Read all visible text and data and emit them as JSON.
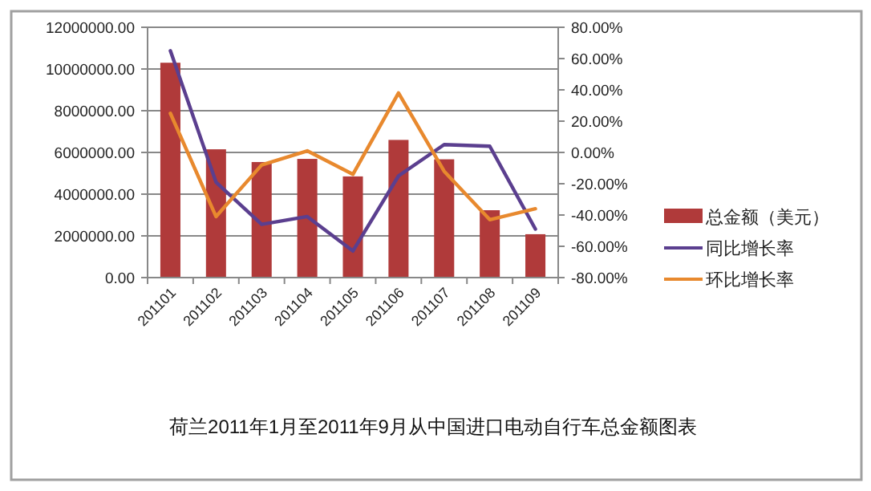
{
  "chart_data": {
    "type": "bar",
    "title": "荷兰2011年1月至2011年9月从中国进口电动自行车总金额图表",
    "categories": [
      "201101",
      "201102",
      "201103",
      "201104",
      "201105",
      "201106",
      "201107",
      "201108",
      "201109"
    ],
    "series": [
      {
        "name": "总金额（美元）",
        "color": "#b03a3a",
        "values": [
          10300000,
          6150000,
          5540000,
          5690000,
          4850000,
          6600000,
          5670000,
          3230000,
          2080000
        ]
      },
      {
        "name": "同比增长率",
        "type": "line",
        "axis": "y2",
        "color": "#5b3f8f",
        "values": [
          65,
          -19,
          -46,
          -41,
          -63,
          -15,
          5,
          4,
          -49
        ]
      },
      {
        "name": "环比增长率",
        "type": "line",
        "axis": "y2",
        "color": "#e8892e",
        "values": [
          25,
          -41,
          -8,
          1,
          -14,
          38,
          -12,
          -43,
          -36
        ]
      }
    ],
    "ylim": [
      0,
      12000000
    ],
    "yticks": [
      {
        "value": 0,
        "label": "0.00"
      },
      {
        "value": 2000000,
        "label": "2000000.00"
      },
      {
        "value": 4000000,
        "label": "4000000.00"
      },
      {
        "value": 6000000,
        "label": "6000000.00"
      },
      {
        "value": 8000000,
        "label": "8000000.00"
      },
      {
        "value": 10000000,
        "label": "10000000.00"
      },
      {
        "value": 12000000,
        "label": "12000000.00"
      }
    ],
    "y2lim": [
      -80,
      80
    ],
    "y2ticks": [
      {
        "value": -80,
        "label": "-80.00%"
      },
      {
        "value": -60,
        "label": "-60.00%"
      },
      {
        "value": -40,
        "label": "-40.00%"
      },
      {
        "value": -20,
        "label": "-20.00%"
      },
      {
        "value": 0,
        "label": "0.00%"
      },
      {
        "value": 20,
        "label": "20.00%"
      },
      {
        "value": 40,
        "label": "40.00%"
      },
      {
        "value": 60,
        "label": "60.00%"
      },
      {
        "value": 80,
        "label": "80.00%"
      }
    ],
    "grid": "y",
    "legend": "right",
    "marker": "none",
    "line_style": "solid"
  }
}
